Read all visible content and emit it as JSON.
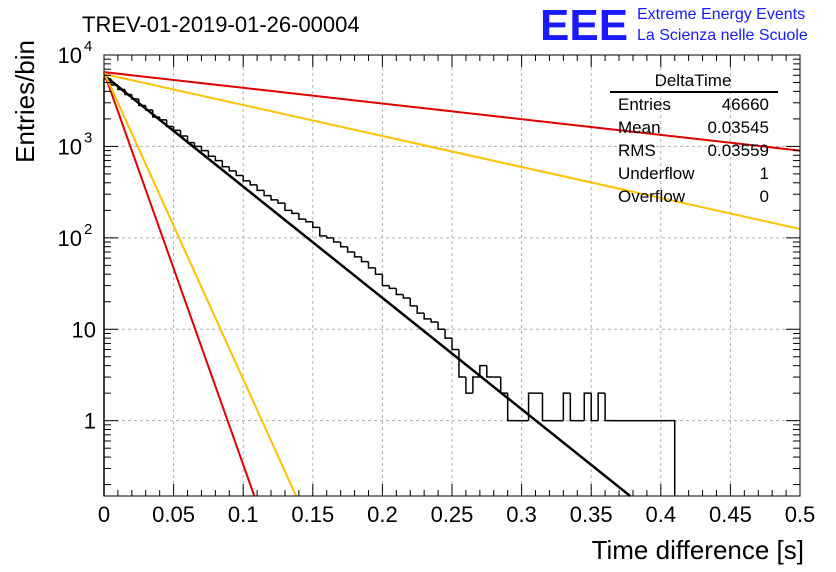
{
  "logo": {
    "mark": "EEE",
    "line1": "Extreme Energy Events",
    "line2": "La Scienza nelle Scuole",
    "color": "#1a1aff"
  },
  "stats": {
    "title": "DeltaTime",
    "rows": [
      {
        "label": "Entries",
        "value": "46660"
      },
      {
        "label": "Mean",
        "value": "0.03545"
      },
      {
        "label": "RMS",
        "value": "0.03559"
      },
      {
        "label": "Underflow",
        "value": "1"
      },
      {
        "label": "Overflow",
        "value": "0"
      }
    ]
  },
  "chart_data": {
    "type": "line",
    "title": "TREV-01-2019-01-26-00004",
    "xlabel": "Time difference [s]",
    "ylabel": "Entries/bin",
    "xlim": [
      0,
      0.5
    ],
    "ylim": [
      0.15,
      10000
    ],
    "yscale": "log",
    "grid": true,
    "legend": "none",
    "x_ticks": [
      "0",
      "0.05",
      "0.1",
      "0.15",
      "0.2",
      "0.25",
      "0.3",
      "0.35",
      "0.4",
      "0.45",
      "0.5"
    ],
    "y_ticks": [
      {
        "value": 1,
        "base": "1",
        "exp": ""
      },
      {
        "value": 10,
        "base": "10",
        "exp": ""
      },
      {
        "value": 100,
        "base": "10",
        "exp": "2"
      },
      {
        "value": 1000,
        "base": "10",
        "exp": "3"
      },
      {
        "value": 10000,
        "base": "10",
        "exp": "4"
      }
    ],
    "histogram": {
      "color": "#000000",
      "bins": [
        [
          0.0,
          0.005,
          5500
        ],
        [
          0.005,
          0.01,
          4700
        ],
        [
          0.01,
          0.015,
          4200
        ],
        [
          0.015,
          0.02,
          3700
        ],
        [
          0.02,
          0.025,
          3300
        ],
        [
          0.025,
          0.03,
          2800
        ],
        [
          0.03,
          0.035,
          2500
        ],
        [
          0.035,
          0.04,
          2100
        ],
        [
          0.04,
          0.045,
          1950
        ],
        [
          0.045,
          0.05,
          1650
        ],
        [
          0.05,
          0.055,
          1500
        ],
        [
          0.055,
          0.06,
          1300
        ],
        [
          0.06,
          0.065,
          1100
        ],
        [
          0.065,
          0.07,
          1000
        ],
        [
          0.07,
          0.075,
          900
        ],
        [
          0.075,
          0.08,
          780
        ],
        [
          0.08,
          0.085,
          700
        ],
        [
          0.085,
          0.09,
          600
        ],
        [
          0.09,
          0.095,
          540
        ],
        [
          0.095,
          0.1,
          480
        ],
        [
          0.1,
          0.105,
          420
        ],
        [
          0.105,
          0.11,
          380
        ],
        [
          0.11,
          0.115,
          330
        ],
        [
          0.115,
          0.12,
          290
        ],
        [
          0.12,
          0.125,
          260
        ],
        [
          0.125,
          0.13,
          240
        ],
        [
          0.13,
          0.135,
          200
        ],
        [
          0.135,
          0.14,
          185
        ],
        [
          0.14,
          0.145,
          160
        ],
        [
          0.145,
          0.15,
          150
        ],
        [
          0.15,
          0.155,
          130
        ],
        [
          0.155,
          0.16,
          105
        ],
        [
          0.16,
          0.165,
          100
        ],
        [
          0.165,
          0.17,
          90
        ],
        [
          0.17,
          0.175,
          80
        ],
        [
          0.175,
          0.18,
          70
        ],
        [
          0.18,
          0.185,
          62
        ],
        [
          0.185,
          0.19,
          55
        ],
        [
          0.19,
          0.195,
          47
        ],
        [
          0.195,
          0.2,
          40
        ],
        [
          0.2,
          0.205,
          30
        ],
        [
          0.205,
          0.21,
          28
        ],
        [
          0.21,
          0.215,
          24
        ],
        [
          0.215,
          0.22,
          22
        ],
        [
          0.22,
          0.225,
          18
        ],
        [
          0.225,
          0.23,
          15
        ],
        [
          0.23,
          0.235,
          13
        ],
        [
          0.235,
          0.24,
          12
        ],
        [
          0.24,
          0.245,
          10
        ],
        [
          0.245,
          0.25,
          8
        ],
        [
          0.25,
          0.255,
          6
        ],
        [
          0.255,
          0.26,
          3
        ],
        [
          0.26,
          0.265,
          2
        ],
        [
          0.265,
          0.27,
          3
        ],
        [
          0.27,
          0.275,
          4
        ],
        [
          0.275,
          0.28,
          3
        ],
        [
          0.28,
          0.285,
          3
        ],
        [
          0.285,
          0.29,
          2
        ],
        [
          0.29,
          0.295,
          1
        ],
        [
          0.295,
          0.3,
          1
        ],
        [
          0.3,
          0.305,
          1
        ],
        [
          0.305,
          0.31,
          2
        ],
        [
          0.31,
          0.315,
          2
        ],
        [
          0.315,
          0.32,
          1
        ],
        [
          0.32,
          0.325,
          1
        ],
        [
          0.325,
          0.33,
          1
        ],
        [
          0.33,
          0.335,
          2
        ],
        [
          0.335,
          0.34,
          1
        ],
        [
          0.34,
          0.345,
          1
        ],
        [
          0.345,
          0.35,
          2
        ],
        [
          0.35,
          0.355,
          1
        ],
        [
          0.355,
          0.36,
          2
        ],
        [
          0.36,
          0.365,
          1
        ],
        [
          0.365,
          0.37,
          1
        ],
        [
          0.37,
          0.375,
          1
        ],
        [
          0.375,
          0.38,
          1
        ],
        [
          0.38,
          0.385,
          1
        ],
        [
          0.385,
          0.39,
          1
        ],
        [
          0.39,
          0.395,
          1
        ],
        [
          0.395,
          0.4,
          1
        ],
        [
          0.4,
          0.405,
          1
        ],
        [
          0.405,
          0.41,
          1
        ]
      ]
    },
    "series": [
      {
        "color": "#000000",
        "width": 2.5,
        "x": [
          0.0,
          0.378
        ],
        "y": [
          6000,
          0.15
        ]
      },
      {
        "color": "#e00000",
        "width": 2,
        "x": [
          0.0,
          0.5
        ],
        "y": [
          6500,
          900
        ]
      },
      {
        "color": "#ffc000",
        "width": 2,
        "x": [
          0.0,
          0.5
        ],
        "y": [
          6200,
          125
        ]
      },
      {
        "color": "#e00000",
        "width": 2,
        "x": [
          0.0,
          0.108
        ],
        "y": [
          6500,
          0.15
        ]
      },
      {
        "color": "#ffc000",
        "width": 2,
        "x": [
          0.0,
          0.138
        ],
        "y": [
          6500,
          0.15
        ]
      }
    ]
  }
}
